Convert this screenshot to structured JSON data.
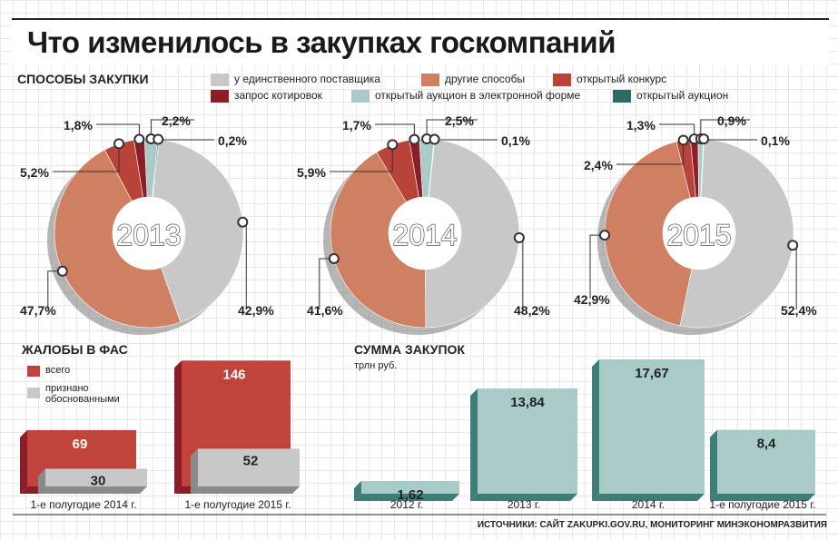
{
  "title": "Что изменилось в закупках госкомпаний",
  "source": "ИСТОЧНИКИ: САЙТ ZAKUPKI.GOV.RU, МОНИТОРИНГ МИНЭКОНОМРАЗВИТИЯ",
  "colors": {
    "single_supplier": "#c8c8c8",
    "other_methods": "#cf8062",
    "open_contest": "#b94338",
    "quotation_request": "#8e1d2a",
    "electronic_auction": "#a8cbc7",
    "open_auction": "#2e6b66",
    "complaints_total": "#c0443b",
    "complaints_justified": "#c8c8c8",
    "spend": "#a8cbc7"
  },
  "chart_data": [
    {
      "type": "pie",
      "title": "СПОСОБЫ ЗАКУПКИ",
      "legend": [
        "у единственного поставщика",
        "другие способы",
        "открытый конкурс",
        "запрос котировок",
        "открытый аукцион в электронной форме",
        "открытый аукцион"
      ],
      "donuts": [
        {
          "year": "2013",
          "values": [
            42.9,
            47.7,
            5.2,
            1.8,
            2.2,
            0.2
          ],
          "labels": [
            "42,9%",
            "47,7%",
            "5,2%",
            "1,8%",
            "2,2%",
            "0,2%"
          ]
        },
        {
          "year": "2014",
          "values": [
            48.2,
            41.6,
            5.9,
            1.7,
            2.5,
            0.1
          ],
          "labels": [
            "48,2%",
            "41,6%",
            "5,9%",
            "1,7%",
            "2,5%",
            "0,1%"
          ]
        },
        {
          "year": "2015",
          "values": [
            52.4,
            42.9,
            2.4,
            1.3,
            0.9,
            0.1
          ],
          "labels": [
            "52,4%",
            "42,9%",
            "2,4%",
            "1,3%",
            "0,9%",
            "0,1%"
          ]
        }
      ]
    },
    {
      "type": "bar",
      "title": "ЖАЛОБЫ В ФАС",
      "categories": [
        "1-е полугодие 2014 г.",
        "1-е полугодие 2015 г."
      ],
      "series": [
        {
          "name": "всего",
          "values": [
            69,
            146
          ]
        },
        {
          "name": "признано обоснованными",
          "values": [
            30,
            52
          ]
        }
      ]
    },
    {
      "type": "bar",
      "title": "СУММА ЗАКУПОК",
      "ylabel": "трлн руб.",
      "categories": [
        "2012 г.",
        "2013 г.",
        "2014 г.",
        "1-е полугодие 2015 г."
      ],
      "values": [
        1.62,
        13.84,
        17.67,
        8.4
      ],
      "labels": [
        "1,62",
        "13,84",
        "17,67",
        "8,4"
      ]
    }
  ]
}
